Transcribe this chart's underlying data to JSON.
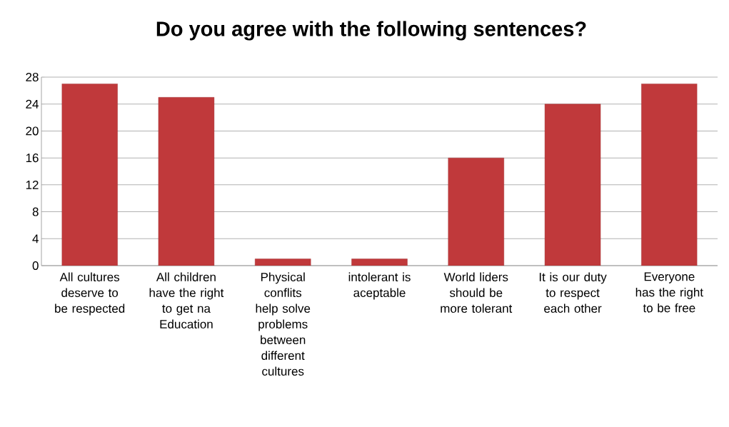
{
  "chart_data": {
    "type": "bar",
    "title": "Do you agree with the following sentences?",
    "categories": [
      "All cultures deserve to be respected",
      "All children have the right to get na Education",
      "Physical conflits help solve problems between different cultures",
      "intolerant is aceptable",
      "World liders should be more tolerant",
      "It is our duty to respect each other",
      "Everyone has the right to be free"
    ],
    "values": [
      27,
      25,
      1,
      1,
      16,
      24,
      27
    ],
    "color": "#c0393b",
    "ylim": [
      0,
      28
    ],
    "yticks": [
      0,
      4,
      8,
      12,
      16,
      20,
      24,
      28
    ],
    "grid": "y"
  }
}
